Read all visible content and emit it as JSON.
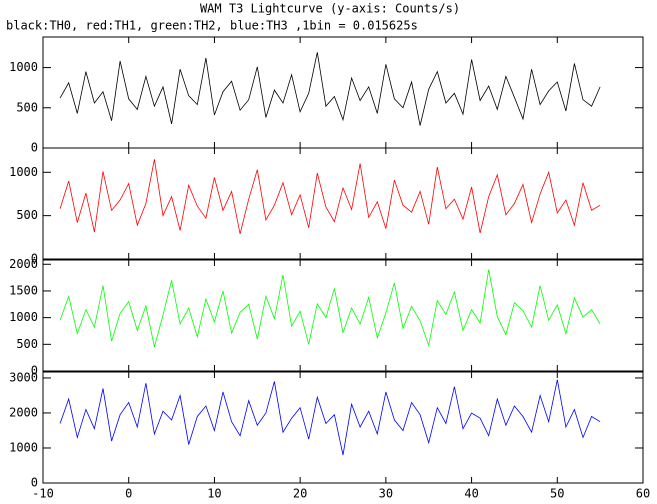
{
  "chart_data": [
    {
      "type": "line",
      "title": "WAM T3 Lightcurve (y-axis: Counts/s)",
      "subtitle": "black:TH0, red:TH1, green:TH2, blue:TH3 ,1bin = 0.015625s",
      "color": "#000000",
      "x": [
        -8,
        -7,
        -6,
        -5,
        -4,
        -3,
        -2,
        -1,
        0,
        1,
        2,
        3,
        4,
        5,
        6,
        7,
        8,
        9,
        10,
        11,
        12,
        13,
        14,
        15,
        16,
        17,
        18,
        19,
        20,
        21,
        22,
        23,
        24,
        25,
        26,
        27,
        28,
        29,
        30,
        31,
        32,
        33,
        34,
        35,
        36,
        37,
        38,
        39,
        40,
        41,
        42,
        43,
        44,
        45,
        46,
        47,
        48,
        49,
        50,
        51,
        52,
        53,
        54,
        55
      ],
      "values": [
        620,
        810,
        430,
        950,
        560,
        700,
        340,
        1080,
        610,
        480,
        890,
        520,
        760,
        300,
        980,
        650,
        540,
        1120,
        410,
        700,
        830,
        470,
        600,
        1010,
        380,
        720,
        560,
        910,
        450,
        680,
        1190,
        520,
        640,
        350,
        870,
        590,
        760,
        430,
        1040,
        610,
        500,
        820,
        280,
        730,
        950,
        560,
        680,
        420,
        1100,
        590,
        770,
        480,
        890,
        630,
        360,
        980,
        540,
        710,
        820,
        460,
        1050,
        600,
        520,
        760
      ],
      "xlim": [
        -10,
        60
      ],
      "ylim": [
        0,
        1380
      ],
      "yticks": [
        0,
        500,
        1000
      ]
    },
    {
      "type": "line",
      "color": "#ff0000",
      "x": [
        -8,
        -7,
        -6,
        -5,
        -4,
        -3,
        -2,
        -1,
        0,
        1,
        2,
        3,
        4,
        5,
        6,
        7,
        8,
        9,
        10,
        11,
        12,
        13,
        14,
        15,
        16,
        17,
        18,
        19,
        20,
        21,
        22,
        23,
        24,
        25,
        26,
        27,
        28,
        29,
        30,
        31,
        32,
        33,
        34,
        35,
        36,
        37,
        38,
        39,
        40,
        41,
        42,
        43,
        44,
        45,
        46,
        47,
        48,
        49,
        50,
        51,
        52,
        53,
        54,
        55
      ],
      "values": [
        580,
        900,
        420,
        760,
        310,
        1010,
        560,
        680,
        870,
        390,
        640,
        1150,
        500,
        720,
        330,
        850,
        610,
        470,
        940,
        560,
        780,
        290,
        690,
        1030,
        450,
        620,
        880,
        510,
        740,
        360,
        990,
        600,
        430,
        820,
        570,
        1100,
        480,
        660,
        350,
        910,
        620,
        540,
        780,
        400,
        1060,
        580,
        690,
        460,
        830,
        300,
        720,
        970,
        510,
        640,
        860,
        420,
        750,
        1000,
        530,
        680,
        390,
        880,
        560,
        620
      ],
      "xlim": [
        -10,
        60
      ],
      "ylim": [
        0,
        1280
      ],
      "yticks": [
        0,
        500,
        1000
      ]
    },
    {
      "type": "line",
      "color": "#00ff00",
      "x": [
        -8,
        -7,
        -6,
        -5,
        -4,
        -3,
        -2,
        -1,
        0,
        1,
        2,
        3,
        4,
        5,
        6,
        7,
        8,
        9,
        10,
        11,
        12,
        13,
        14,
        15,
        16,
        17,
        18,
        19,
        20,
        21,
        22,
        23,
        24,
        25,
        26,
        27,
        28,
        29,
        30,
        31,
        32,
        33,
        34,
        35,
        36,
        37,
        38,
        39,
        40,
        41,
        42,
        43,
        44,
        45,
        46,
        47,
        48,
        49,
        50,
        51,
        52,
        53,
        54,
        55
      ],
      "values": [
        950,
        1400,
        700,
        1150,
        820,
        1600,
        560,
        1080,
        1300,
        760,
        1220,
        450,
        1050,
        1700,
        880,
        1180,
        640,
        1350,
        920,
        1500,
        710,
        1100,
        1250,
        600,
        1400,
        980,
        1800,
        840,
        1120,
        500,
        1260,
        1000,
        1550,
        720,
        1180,
        880,
        1380,
        620,
        1090,
        1650,
        800,
        1210,
        940,
        480,
        1320,
        1060,
        1480,
        760,
        1150,
        900,
        1900,
        1020,
        680,
        1280,
        1130,
        820,
        1600,
        950,
        1240,
        700,
        1370,
        1010,
        1150,
        880
      ],
      "xlim": [
        -10,
        60
      ],
      "ylim": [
        0,
        2080
      ],
      "yticks": [
        0,
        500,
        1000,
        1500,
        2000
      ]
    },
    {
      "type": "line",
      "color": "#0000ff",
      "x": [
        -8,
        -7,
        -6,
        -5,
        -4,
        -3,
        -2,
        -1,
        0,
        1,
        2,
        3,
        4,
        5,
        6,
        7,
        8,
        9,
        10,
        11,
        12,
        13,
        14,
        15,
        16,
        17,
        18,
        19,
        20,
        21,
        22,
        23,
        24,
        25,
        26,
        27,
        28,
        29,
        30,
        31,
        32,
        33,
        34,
        35,
        36,
        37,
        38,
        39,
        40,
        41,
        42,
        43,
        44,
        45,
        46,
        47,
        48,
        49,
        50,
        51,
        52,
        53,
        54,
        55
      ],
      "values": [
        1700,
        2400,
        1300,
        2100,
        1550,
        2700,
        1200,
        1950,
        2300,
        1600,
        2850,
        1400,
        2050,
        1800,
        2500,
        1100,
        1900,
        2200,
        1500,
        2600,
        1750,
        1350,
        2350,
        1650,
        2000,
        2900,
        1450,
        1850,
        2150,
        1250,
        2450,
        1700,
        1950,
        800,
        2250,
        1600,
        2050,
        1400,
        2600,
        1800,
        1500,
        2300,
        1950,
        1150,
        2150,
        1700,
        2750,
        1550,
        2000,
        1850,
        1350,
        2400,
        1650,
        2200,
        1900,
        1450,
        2500,
        1750,
        2950,
        1600,
        2100,
        1300,
        1900,
        1750
      ],
      "xlim": [
        -10,
        60
      ],
      "ylim": [
        0,
        3170
      ],
      "yticks": [
        0,
        1000,
        2000,
        3000
      ],
      "xticks": [
        -10,
        0,
        10,
        20,
        30,
        40,
        50,
        60
      ]
    }
  ]
}
